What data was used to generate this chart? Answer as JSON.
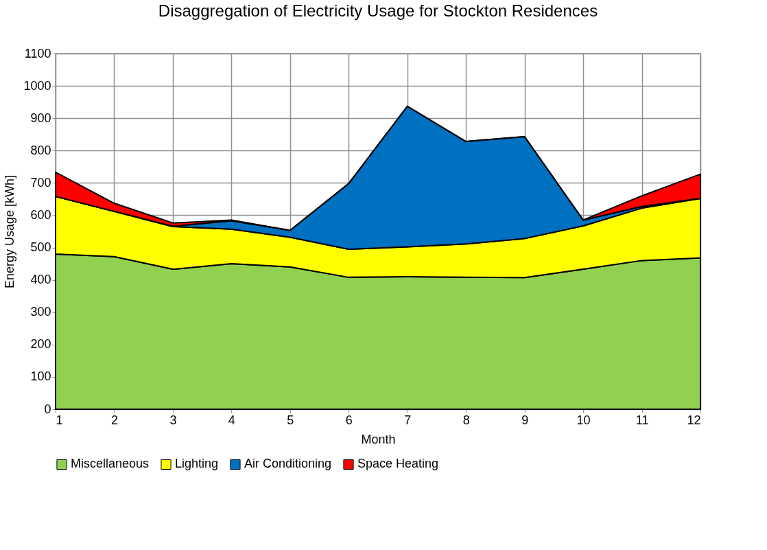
{
  "chart_data": {
    "type": "area",
    "title": "Disaggregation of Electricity Usage for Stockton Residences",
    "xlabel": "Month",
    "ylabel": "Energy Usage  [kWh]",
    "x": [
      1,
      2,
      3,
      4,
      5,
      6,
      7,
      8,
      9,
      10,
      11,
      12
    ],
    "stacked": true,
    "series": [
      {
        "name": "Miscellaneous",
        "color": "#92d050",
        "values": [
          480,
          472,
          433,
          450,
          440,
          408,
          410,
          408,
          407,
          433,
          460,
          468
        ]
      },
      {
        "name": "Lighting",
        "color": "#ffff00",
        "values": [
          178,
          140,
          132,
          107,
          92,
          87,
          92,
          103,
          121,
          134,
          162,
          184
        ]
      },
      {
        "name": "Air Conditioning",
        "color": "#0070c0",
        "values": [
          0,
          0,
          1,
          26,
          21,
          203,
          435,
          317,
          315,
          18,
          5,
          0
        ]
      },
      {
        "name": "Space Heating",
        "color": "#ff0000",
        "values": [
          75,
          25,
          10,
          2,
          0,
          0,
          0,
          0,
          0,
          0,
          33,
          75
        ]
      }
    ],
    "xlim": [
      1,
      12
    ],
    "xticks": [
      1,
      2,
      3,
      4,
      5,
      6,
      7,
      8,
      9,
      10,
      11,
      12
    ],
    "ylim": [
      0,
      1100
    ],
    "yticks": [
      0,
      100,
      200,
      300,
      400,
      500,
      600,
      700,
      800,
      900,
      1000,
      1100
    ],
    "grid": true,
    "legend": "bottom"
  }
}
